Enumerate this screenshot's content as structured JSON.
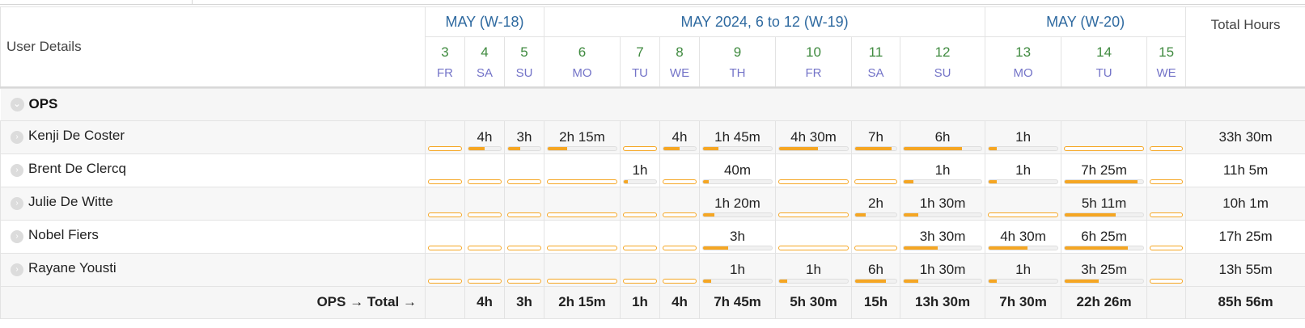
{
  "header": {
    "user_details_label": "User Details",
    "total_hours_label": "Total Hours",
    "weeks": [
      {
        "label": "MAY (W-18)",
        "span": 3
      },
      {
        "label": "MAY 2024, 6 to 12 (W-19)",
        "span": 7
      },
      {
        "label": "MAY (W-20)",
        "span": 3
      }
    ],
    "days": [
      {
        "num": "3",
        "dow": "FR"
      },
      {
        "num": "4",
        "dow": "SA"
      },
      {
        "num": "5",
        "dow": "SU"
      },
      {
        "num": "6",
        "dow": "MO"
      },
      {
        "num": "7",
        "dow": "TU"
      },
      {
        "num": "8",
        "dow": "WE"
      },
      {
        "num": "9",
        "dow": "TH"
      },
      {
        "num": "10",
        "dow": "FR"
      },
      {
        "num": "11",
        "dow": "SA"
      },
      {
        "num": "12",
        "dow": "SU"
      },
      {
        "num": "13",
        "dow": "MO"
      },
      {
        "num": "14",
        "dow": "TU"
      },
      {
        "num": "15",
        "dow": "WE"
      }
    ]
  },
  "group": {
    "name": "OPS",
    "collapse_icon": "chevron-down-icon",
    "expand_icon": "chevron-right-icon",
    "total_label": "OPS → Total →"
  },
  "users": [
    {
      "name": "Kenji De Coster",
      "hours": [
        "",
        "4h",
        "3h",
        "2h 15m",
        "",
        "4h",
        "1h 45m",
        "4h 30m",
        "7h",
        "6h",
        "1h",
        "",
        ""
      ],
      "fill": [
        0,
        0.5,
        0.37,
        0.28,
        0,
        0.5,
        0.22,
        0.56,
        0.88,
        0.75,
        0.12,
        0,
        0
      ],
      "total": "33h 30m"
    },
    {
      "name": "Brent De Clercq",
      "hours": [
        "",
        "",
        "",
        "",
        "1h",
        "",
        "40m",
        "",
        "",
        "1h",
        "1h",
        "7h 25m",
        ""
      ],
      "fill": [
        0,
        0,
        0,
        0,
        0.12,
        0,
        0.08,
        0,
        0,
        0.12,
        0.12,
        0.93,
        0
      ],
      "total": "11h 5m"
    },
    {
      "name": "Julie De Witte",
      "hours": [
        "",
        "",
        "",
        "",
        "",
        "",
        "1h 20m",
        "",
        "2h",
        "1h 30m",
        "",
        "5h 11m",
        ""
      ],
      "fill": [
        0,
        0,
        0,
        0,
        0,
        0,
        0.17,
        0,
        0.25,
        0.19,
        0,
        0.65,
        0
      ],
      "total": "10h 1m"
    },
    {
      "name": "Nobel Fiers",
      "hours": [
        "",
        "",
        "",
        "",
        "",
        "",
        "3h",
        "",
        "",
        "3h 30m",
        "4h 30m",
        "6h 25m",
        ""
      ],
      "fill": [
        0,
        0,
        0,
        0,
        0,
        0,
        0.37,
        0,
        0,
        0.44,
        0.56,
        0.8,
        0
      ],
      "total": "17h 25m"
    },
    {
      "name": "Rayane Yousti",
      "hours": [
        "",
        "",
        "",
        "",
        "",
        "",
        "1h",
        "1h",
        "6h",
        "1h 30m",
        "1h",
        "3h 25m",
        ""
      ],
      "fill": [
        0,
        0,
        0,
        0,
        0,
        0,
        0.12,
        0.12,
        0.75,
        0.19,
        0.12,
        0.43,
        0
      ],
      "total": "13h 55m"
    }
  ],
  "day_totals": [
    "",
    "4h",
    "3h",
    "2h 15m",
    "1h",
    "4h",
    "7h 45m",
    "5h 30m",
    "15h",
    "13h 30m",
    "7h 30m",
    "22h 26m",
    ""
  ],
  "grand_total": "85h 56m",
  "colors": {
    "week_header": "#2f6aa0",
    "day_number": "#3f8a3f",
    "day_of_week": "#7474c8",
    "bar_fill": "#f5a623",
    "row_alt": "#f7f7f7"
  }
}
